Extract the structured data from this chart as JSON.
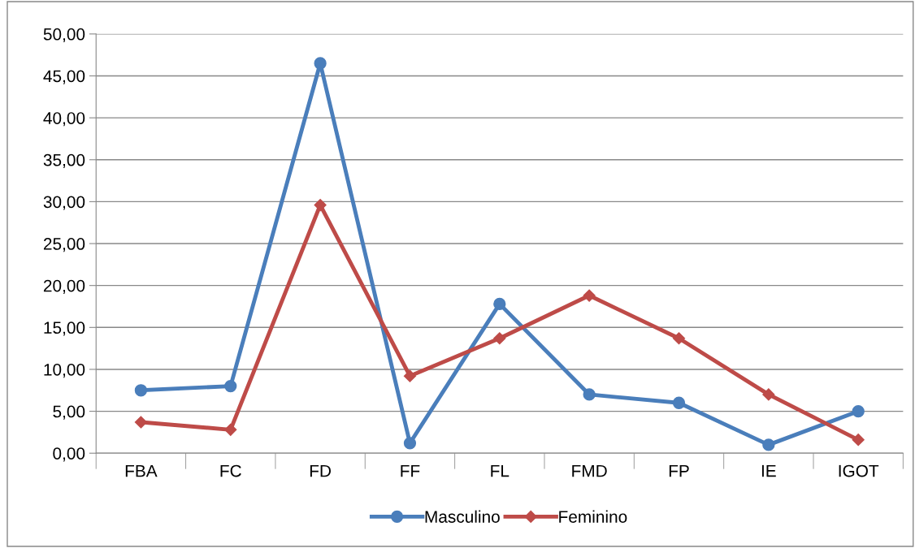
{
  "chart_data": {
    "type": "line",
    "categories": [
      "FBA",
      "FC",
      "FD",
      "FF",
      "FL",
      "FMD",
      "FP",
      "IE",
      "IGOT"
    ],
    "series": [
      {
        "name": "Masculino",
        "color": "#4a7ebb",
        "marker": "circle",
        "values": [
          7.5,
          8.0,
          46.5,
          1.2,
          17.8,
          7.0,
          6.0,
          1.0,
          5.0
        ]
      },
      {
        "name": "Feminino",
        "color": "#be4b48",
        "marker": "diamond",
        "values": [
          3.7,
          2.8,
          29.6,
          9.2,
          13.7,
          18.8,
          13.7,
          7.0,
          1.6
        ]
      }
    ],
    "ylim": [
      0,
      50
    ],
    "yticks": [
      {
        "value": 0,
        "label": "0,00"
      },
      {
        "value": 5,
        "label": "5,00"
      },
      {
        "value": 10,
        "label": "10,00"
      },
      {
        "value": 15,
        "label": "15,00"
      },
      {
        "value": 20,
        "label": "20,00"
      },
      {
        "value": 25,
        "label": "25,00"
      },
      {
        "value": 30,
        "label": "30,00"
      },
      {
        "value": 35,
        "label": "35,00"
      },
      {
        "value": 40,
        "label": "40,00"
      },
      {
        "value": 45,
        "label": "45,00"
      },
      {
        "value": 50,
        "label": "50,00"
      }
    ],
    "grid": "y",
    "legend": "bottom",
    "line_style": "solid"
  }
}
